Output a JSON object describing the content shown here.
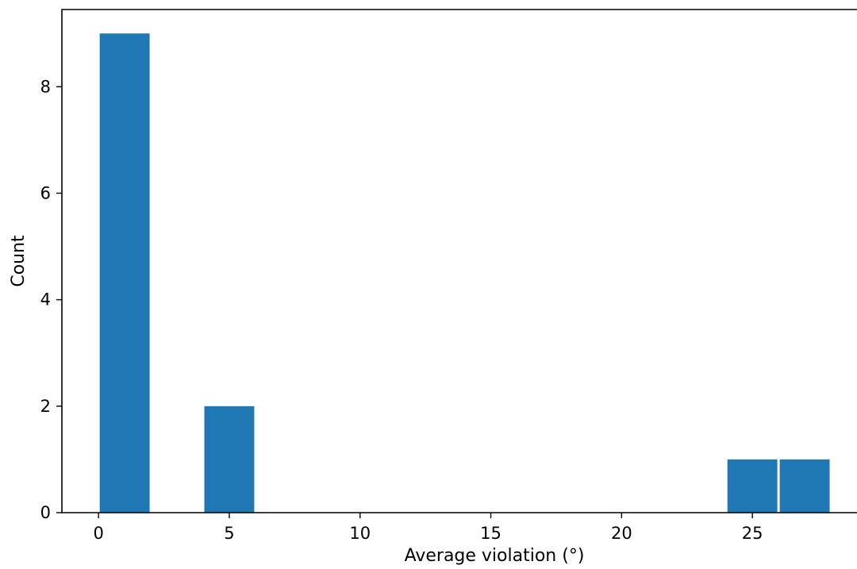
{
  "chart_data": {
    "type": "bar",
    "title": "",
    "xlabel": "Average violation (°)",
    "ylabel": "Count",
    "xlim": [
      -1.4,
      29
    ],
    "ylim": [
      0,
      9.45
    ],
    "x_ticks": [
      0,
      5,
      10,
      15,
      20,
      25
    ],
    "y_ticks": [
      0,
      2,
      4,
      6,
      8
    ],
    "bin_width": 2,
    "bins": [
      {
        "start": 0,
        "end": 2,
        "count": 9
      },
      {
        "start": 4,
        "end": 6,
        "count": 2
      },
      {
        "start": 24,
        "end": 26,
        "count": 1
      },
      {
        "start": 26,
        "end": 28,
        "count": 1
      }
    ],
    "bar_color": "#1f77b4",
    "grid": false,
    "legend": "none"
  }
}
